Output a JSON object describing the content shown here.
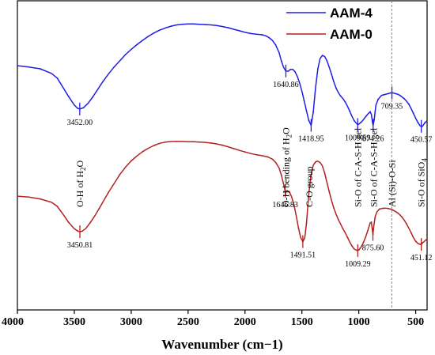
{
  "chart_data": {
    "type": "line",
    "xlabel": "Wavenumber (cm−1)",
    "ylabel": "",
    "xlim": [
      4000,
      400
    ],
    "x_reversed": true,
    "xticks": [
      4000,
      3500,
      3000,
      2500,
      2000,
      1500,
      1000,
      500
    ],
    "legend_position": "top-right",
    "colors": {
      "AAM-4": "#1f1fe6",
      "AAM-0": "#b22222"
    },
    "series": [
      {
        "name": "AAM-4",
        "x": [
          4000,
          3900,
          3800,
          3700,
          3650,
          3600,
          3550,
          3500,
          3470,
          3452,
          3420,
          3380,
          3340,
          3300,
          3250,
          3200,
          3150,
          3100,
          3050,
          3000,
          2950,
          2900,
          2850,
          2800,
          2750,
          2700,
          2650,
          2600,
          2550,
          2500,
          2450,
          2400,
          2350,
          2300,
          2250,
          2200,
          2150,
          2100,
          2050,
          2000,
          1950,
          1900,
          1850,
          1820,
          1790,
          1760,
          1730,
          1700,
          1680,
          1660,
          1641,
          1620,
          1600,
          1580,
          1560,
          1540,
          1520,
          1500,
          1480,
          1460,
          1440,
          1419,
          1400,
          1380,
          1360,
          1340,
          1320,
          1300,
          1280,
          1260,
          1240,
          1220,
          1200,
          1180,
          1160,
          1140,
          1120,
          1100,
          1080,
          1060,
          1040,
          1020,
          1010,
          1000,
          980,
          960,
          940,
          920,
          900,
          890,
          880,
          874,
          865,
          850,
          830,
          800,
          780,
          760,
          740,
          720,
          709,
          700,
          680,
          660,
          640,
          620,
          600,
          580,
          560,
          540,
          520,
          500,
          480,
          460,
          451,
          440,
          420,
          400
        ],
        "y": [
          79,
          78.6,
          78,
          76.5,
          75,
          72,
          69,
          66.3,
          65.2,
          65,
          65.4,
          66.8,
          68.8,
          71,
          73.8,
          76.3,
          78.6,
          80.6,
          82.6,
          84.3,
          85.8,
          87.2,
          88.5,
          89.6,
          90.5,
          91.2,
          91.8,
          92.2,
          92.4,
          92.5,
          92.5,
          92.4,
          92.3,
          92.2,
          92,
          91.7,
          91.3,
          90.8,
          90.3,
          89.8,
          89.4,
          89.2,
          89,
          88.7,
          88.1,
          87.2,
          85.7,
          83.2,
          80.5,
          78.4,
          77.3,
          77.2,
          77.8,
          77.8,
          77,
          75.5,
          73.4,
          70.8,
          67.6,
          64.4,
          61.3,
          59.7,
          64,
          72,
          78,
          81.3,
          82.3,
          82,
          80.6,
          78.5,
          76.3,
          73.8,
          71.8,
          70.3,
          69.2,
          68.4,
          67.3,
          65.9,
          64.3,
          62.6,
          61.2,
          60.3,
          60,
          60.1,
          60.7,
          61.5,
          62.5,
          63.4,
          64.1,
          63.3,
          60.8,
          59.7,
          61.5,
          66.3,
          68.1,
          69.4,
          69.6,
          69.8,
          70,
          70.2,
          70.2,
          70.2,
          70,
          69.8,
          69.4,
          68.9,
          68.3,
          67.5,
          66.5,
          65.1,
          63.6,
          62,
          60.6,
          59.5,
          59.3,
          59.4,
          60.5,
          61.2
        ]
      },
      {
        "name": "AAM-0",
        "x": [
          4000,
          3900,
          3800,
          3700,
          3650,
          3600,
          3550,
          3500,
          3470,
          3451,
          3430,
          3400,
          3360,
          3320,
          3280,
          3240,
          3200,
          3150,
          3100,
          3050,
          3000,
          2950,
          2900,
          2850,
          2800,
          2750,
          2700,
          2650,
          2600,
          2550,
          2500,
          2450,
          2400,
          2350,
          2300,
          2250,
          2200,
          2150,
          2100,
          2050,
          2000,
          1950,
          1900,
          1850,
          1800,
          1760,
          1730,
          1700,
          1680,
          1660,
          1647,
          1630,
          1610,
          1590,
          1570,
          1550,
          1530,
          1510,
          1492,
          1475,
          1460,
          1440,
          1420,
          1400,
          1380,
          1360,
          1340,
          1320,
          1300,
          1280,
          1260,
          1240,
          1220,
          1200,
          1180,
          1160,
          1140,
          1120,
          1100,
          1080,
          1060,
          1040,
          1020,
          1009,
          1000,
          980,
          960,
          940,
          920,
          900,
          890,
          880,
          876,
          868,
          855,
          840,
          820,
          800,
          780,
          760,
          740,
          720,
          700,
          680,
          660,
          640,
          620,
          600,
          580,
          560,
          540,
          520,
          500,
          480,
          460,
          451,
          440,
          420,
          400
        ],
        "y": [
          36.8,
          36.5,
          35.9,
          34.8,
          33.5,
          31,
          28.3,
          26.3,
          25.5,
          25.3,
          25.5,
          26.3,
          28.2,
          30.4,
          32.9,
          35.5,
          38,
          40.9,
          43.8,
          46.2,
          48.2,
          49.8,
          51.2,
          52.3,
          53.2,
          53.9,
          54.3,
          54.5,
          54.5,
          54.5,
          54.4,
          54.4,
          54.3,
          54.2,
          54,
          53.7,
          53.3,
          52.8,
          52.2,
          51.6,
          51.1,
          50.6,
          50.2,
          49.9,
          49.5,
          48.8,
          47.7,
          45.9,
          43.6,
          40.5,
          38.4,
          38.6,
          38.2,
          36.5,
          34,
          30.5,
          26.5,
          23.3,
          22.1,
          23.3,
          28,
          37.5,
          43.6,
          46.8,
          47.9,
          48.1,
          47.7,
          46.6,
          44.3,
          41.2,
          38.2,
          35.5,
          33,
          31,
          29.2,
          27.8,
          26.3,
          25,
          23.5,
          22,
          20.7,
          19.7,
          19.3,
          19.2,
          19.4,
          20.3,
          21.8,
          23.6,
          25.8,
          28.2,
          28.4,
          25.6,
          24.4,
          27.3,
          30.3,
          31.8,
          32.6,
          32.8,
          32.9,
          32.9,
          32.8,
          32.6,
          32.3,
          31.9,
          31.4,
          30.8,
          30,
          29,
          27.8,
          26.4,
          24.9,
          23.4,
          22.2,
          21.5,
          21.2,
          21.2,
          21.7,
          22.3,
          23
        ]
      }
    ],
    "peak_labels": [
      {
        "text": "3452.00",
        "x": 3452,
        "y": 65,
        "series": "AAM-4"
      },
      {
        "text": "1640.86",
        "x": 1641,
        "y": 77.3,
        "series": "AAM-4"
      },
      {
        "text": "1418.95",
        "x": 1419,
        "y": 59.7,
        "series": "AAM-4"
      },
      {
        "text": "1009.59",
        "x": 1010,
        "y": 60,
        "series": "AAM-4"
      },
      {
        "text": "874.26",
        "x": 874,
        "y": 59.7,
        "series": "AAM-4"
      },
      {
        "text": "709.35",
        "x": 709,
        "y": 70.2,
        "series": "AAM-4"
      },
      {
        "text": "450.57",
        "x": 451,
        "y": 59.4,
        "series": "AAM-4"
      },
      {
        "text": "3450.81",
        "x": 3451,
        "y": 25.3,
        "series": "AAM-0"
      },
      {
        "text": "1646.83",
        "x": 1647,
        "y": 38.4,
        "series": "AAM-0"
      },
      {
        "text": "1491.51",
        "x": 1492,
        "y": 22.1,
        "series": "AAM-0"
      },
      {
        "text": "1009.29",
        "x": 1009,
        "y": 19.2,
        "series": "AAM-0"
      },
      {
        "text": "875.60",
        "x": 876,
        "y": 24.4,
        "series": "AAM-0"
      },
      {
        "text": "451.12",
        "x": 451,
        "y": 21.2,
        "series": "AAM-0"
      }
    ],
    "assignments": [
      {
        "main": "O-H of H",
        "sub": "2",
        "rest": "O",
        "x": 3452
      },
      {
        "main": "O-H bending of H",
        "sub": "2",
        "rest": "O",
        "x": 1640
      },
      {
        "main": "C-O group",
        "sub": "",
        "rest": "",
        "x": 1435
      },
      {
        "main": "Si-O of C-A-S-H gel",
        "sub": "",
        "rest": "",
        "x": 1009
      },
      {
        "main": "Si-O of C-A-S-H gel",
        "sub": "",
        "rest": "",
        "x": 870
      },
      {
        "main": "Al (Si)-O-Si",
        "sub": "",
        "rest": "",
        "x": 709
      },
      {
        "main": "Si-O of SiO",
        "sub": "4",
        "rest": "",
        "x": 451
      }
    ],
    "reference_line_x": 710
  }
}
